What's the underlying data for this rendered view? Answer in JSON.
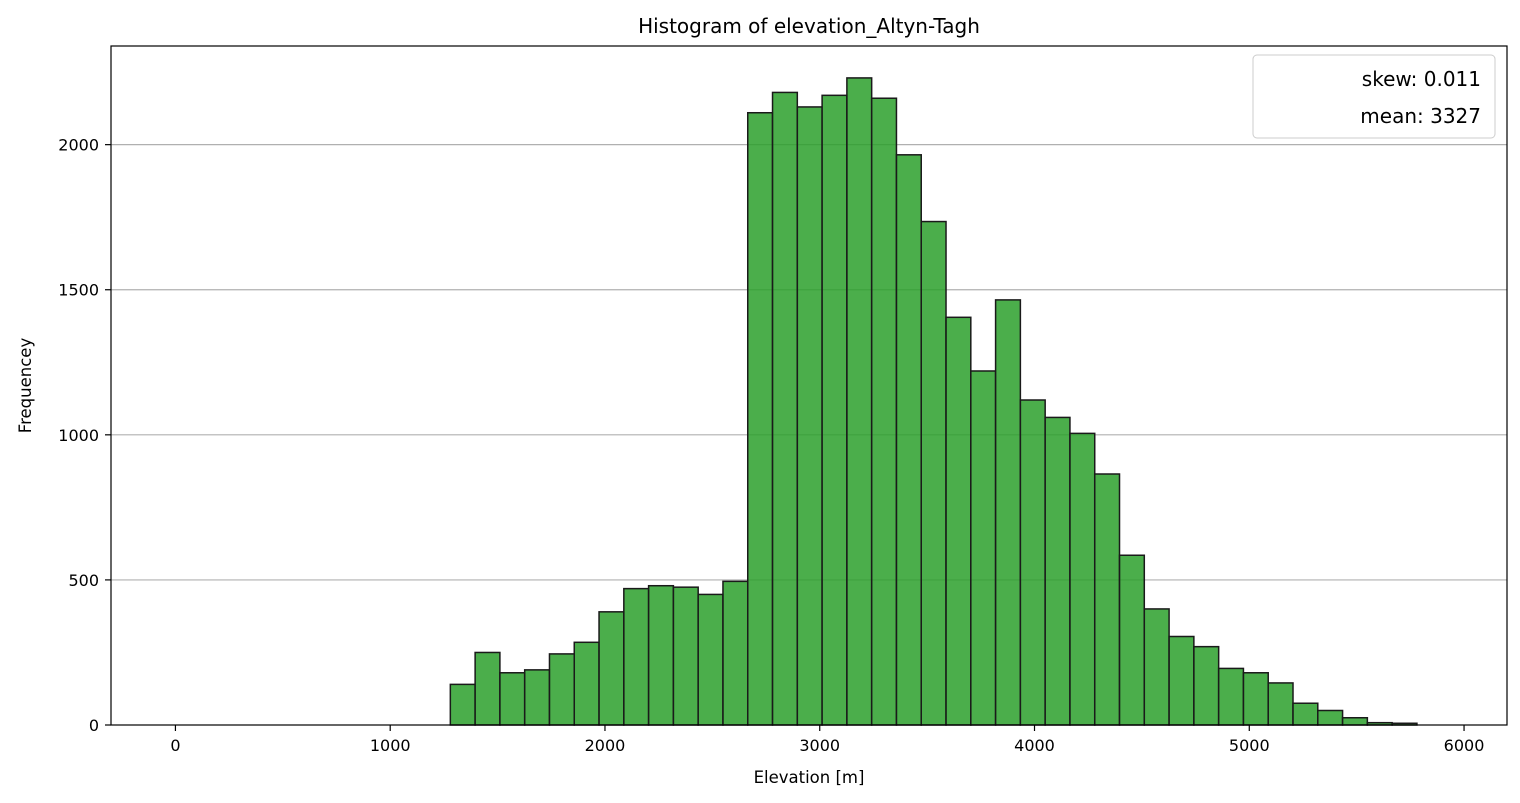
{
  "chart_data": {
    "type": "bar",
    "title": "Histogram of elevation_Altyn-Tagh",
    "xlabel": "Elevation [m]",
    "ylabel": "Frequencey",
    "xlim": [
      -300,
      6200
    ],
    "ylim": [
      0,
      2340
    ],
    "x_ticks": [
      0,
      1000,
      2000,
      3000,
      4000,
      5000,
      6000
    ],
    "y_ticks": [
      0,
      500,
      1000,
      1500,
      2000
    ],
    "grid": "horizontal",
    "legend_position": "top-right",
    "legend": [
      "skew: 0.011",
      "mean: 3327"
    ],
    "bar_color": "#2ca02c",
    "bar_alpha": 0.85,
    "edge_color": "#1a1a1a",
    "bin_width": 115.4,
    "bin_edges_start": 1280,
    "values": [
      140,
      250,
      180,
      190,
      245,
      285,
      390,
      470,
      480,
      475,
      450,
      495,
      2110,
      2180,
      2130,
      2170,
      2230,
      2160,
      1965,
      1735,
      1405,
      1220,
      1465,
      1120,
      1060,
      1005,
      865,
      585,
      400,
      305,
      270,
      195,
      180,
      145,
      75,
      50,
      25,
      8,
      6
    ]
  }
}
